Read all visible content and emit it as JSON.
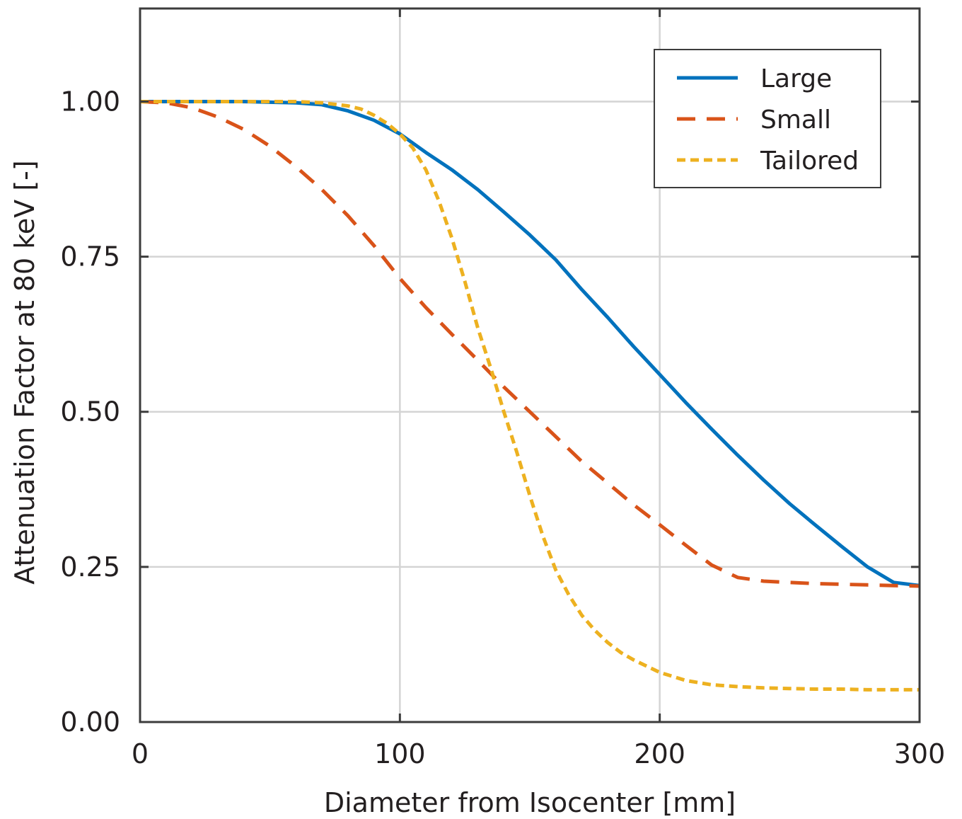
{
  "chart_data": {
    "type": "line",
    "title": "",
    "xlabel": "Diameter from Isocenter [mm]",
    "ylabel": "Attenuation Factor at 80 keV [-]",
    "xlim": [
      0,
      300
    ],
    "ylim": [
      0,
      1.15
    ],
    "x_ticks": [
      "0",
      "100",
      "200",
      "300"
    ],
    "x_tick_values": [
      0,
      100,
      200,
      300
    ],
    "y_ticks": [
      "0.00",
      "0.25",
      "0.50",
      "0.75",
      "1.00"
    ],
    "y_tick_values": [
      0,
      0.25,
      0.5,
      0.75,
      1.0
    ],
    "grid": true,
    "legend_position": "top-right",
    "series": [
      {
        "name": "Large",
        "color": "#0072bd",
        "style": "solid",
        "x": [
          0,
          20,
          40,
          60,
          70,
          80,
          90,
          100,
          110,
          120,
          130,
          140,
          150,
          160,
          170,
          180,
          190,
          200,
          210,
          220,
          230,
          240,
          250,
          260,
          270,
          280,
          290,
          300
        ],
        "y": [
          1.0,
          1.0,
          1.0,
          0.998,
          0.995,
          0.985,
          0.97,
          0.948,
          0.918,
          0.89,
          0.858,
          0.822,
          0.785,
          0.745,
          0.697,
          0.652,
          0.605,
          0.56,
          0.515,
          0.472,
          0.43,
          0.39,
          0.352,
          0.317,
          0.283,
          0.25,
          0.225,
          0.22
        ]
      },
      {
        "name": "Small",
        "color": "#d95319",
        "style": "dashed",
        "x": [
          0,
          10,
          20,
          30,
          40,
          50,
          60,
          70,
          80,
          90,
          100,
          110,
          120,
          130,
          140,
          150,
          160,
          170,
          180,
          190,
          200,
          210,
          220,
          230,
          240,
          250,
          260,
          270,
          280,
          290,
          300
        ],
        "y": [
          1.0,
          0.998,
          0.99,
          0.975,
          0.955,
          0.928,
          0.895,
          0.858,
          0.816,
          0.768,
          0.715,
          0.668,
          0.625,
          0.583,
          0.54,
          0.5,
          0.46,
          0.42,
          0.385,
          0.35,
          0.318,
          0.285,
          0.253,
          0.233,
          0.227,
          0.225,
          0.223,
          0.222,
          0.221,
          0.22,
          0.219
        ]
      },
      {
        "name": "Tailored",
        "color": "#edb120",
        "style": "dotted",
        "x": [
          0,
          20,
          40,
          60,
          70,
          80,
          85,
          90,
          95,
          100,
          105,
          110,
          115,
          120,
          125,
          130,
          135,
          140,
          145,
          150,
          155,
          160,
          165,
          170,
          175,
          180,
          185,
          190,
          200,
          210,
          220,
          230,
          240,
          250,
          260,
          270,
          280,
          290,
          300
        ],
        "y": [
          1.0,
          1.0,
          1.0,
          1.0,
          0.998,
          0.993,
          0.988,
          0.978,
          0.965,
          0.948,
          0.925,
          0.89,
          0.84,
          0.78,
          0.71,
          0.635,
          0.57,
          0.5,
          0.435,
          0.365,
          0.3,
          0.245,
          0.205,
          0.172,
          0.148,
          0.128,
          0.112,
          0.1,
          0.08,
          0.067,
          0.06,
          0.057,
          0.055,
          0.054,
          0.053,
          0.053,
          0.052,
          0.052,
          0.052
        ]
      }
    ]
  }
}
